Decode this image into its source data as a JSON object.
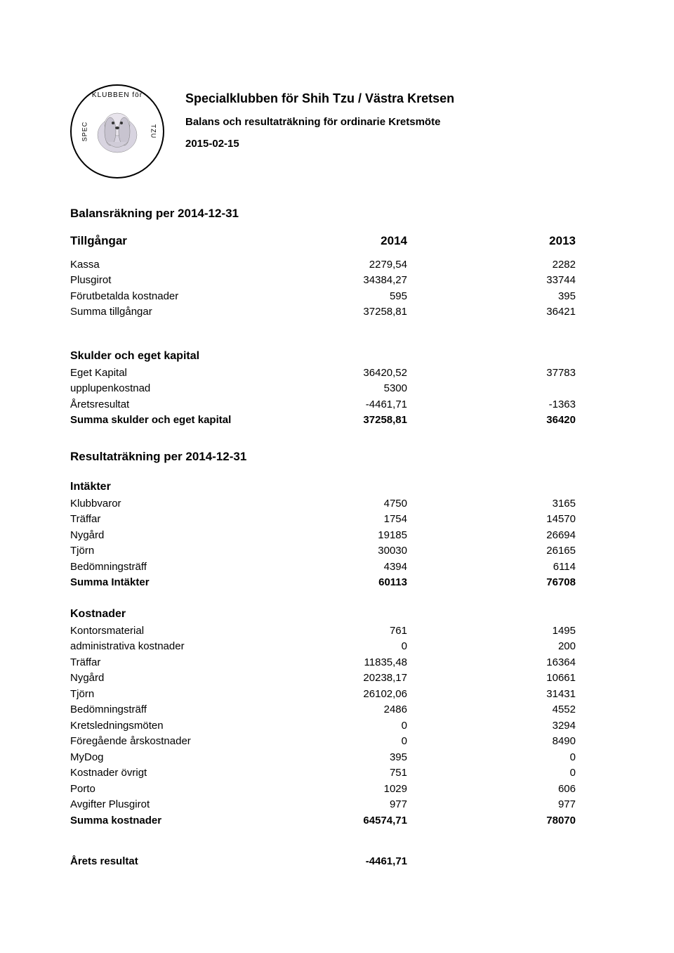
{
  "header": {
    "title": "Specialklubben för Shih Tzu / Västra Kretsen",
    "subtitle": "Balans och resultaträkning för ordinarie Kretsmöte",
    "date": "2015-02-15",
    "logo_arc": "KLUBBEN för",
    "logo_left": "SPEC",
    "logo_right": "TZU"
  },
  "balance_heading": "Balansräkning per 2014-12-31",
  "col_headers": {
    "label": "Tillgångar",
    "y2014": "2014",
    "y2013": "2013"
  },
  "tillgangar": [
    {
      "label": "Kassa",
      "y2014": "2279,54",
      "y2013": "2282"
    },
    {
      "label": "Plusgirot",
      "y2014": "34384,27",
      "y2013": "33744"
    },
    {
      "label": "Förutbetalda kostnader",
      "y2014": "595",
      "y2013": "395"
    },
    {
      "label": "Summa tillgångar",
      "y2014": "37258,81",
      "y2013": "36421",
      "bold": false
    }
  ],
  "skulder_heading": "Skulder och eget kapital",
  "skulder": [
    {
      "label": "Eget Kapital",
      "y2014": "36420,52",
      "y2013": "37783"
    },
    {
      "label": "upplupenkostnad",
      "y2014": "5300",
      "y2013": ""
    },
    {
      "label": "Åretsresultat",
      "y2014": "-4461,71",
      "y2013": "-1363"
    },
    {
      "label": "Summa skulder och eget kapital",
      "y2014": "37258,81",
      "y2013": "36420",
      "bold": true
    }
  ],
  "result_heading": "Resultaträkning per 2014-12-31",
  "intakter_heading": "Intäkter",
  "intakter": [
    {
      "label": "Klubbvaror",
      "y2014": "4750",
      "y2013": "3165"
    },
    {
      "label": "Träffar",
      "y2014": "1754",
      "y2013": "14570"
    },
    {
      "label": "Nygård",
      "y2014": "19185",
      "y2013": "26694"
    },
    {
      "label": "Tjörn",
      "y2014": "30030",
      "y2013": "26165"
    },
    {
      "label": "Bedömningsträff",
      "y2014": "4394",
      "y2013": "6114"
    },
    {
      "label": "Summa Intäkter",
      "y2014": "60113",
      "y2013": "76708",
      "bold": true
    }
  ],
  "kostnader_heading": "Kostnader",
  "kostnader": [
    {
      "label": "Kontorsmaterial",
      "y2014": "761",
      "y2013": "1495"
    },
    {
      "label": "administrativa kostnader",
      "y2014": "0",
      "y2013": "200"
    },
    {
      "label": "Träffar",
      "y2014": "11835,48",
      "y2013": "16364"
    },
    {
      "label": "Nygård",
      "y2014": "20238,17",
      "y2013": "10661"
    },
    {
      "label": "Tjörn",
      "y2014": "26102,06",
      "y2013": "31431"
    },
    {
      "label": "Bedömningsträff",
      "y2014": "2486",
      "y2013": "4552"
    },
    {
      "label": "Kretsledningsmöten",
      "y2014": "0",
      "y2013": "3294"
    },
    {
      "label": "Föregående årskostnader",
      "y2014": "0",
      "y2013": "8490"
    },
    {
      "label": "MyDog",
      "y2014": "395",
      "y2013": "0"
    },
    {
      "label": "Kostnader övrigt",
      "y2014": "751",
      "y2013": "0"
    },
    {
      "label": "Porto",
      "y2014": "1029",
      "y2013": "606"
    },
    {
      "label": "Avgifter Plusgirot",
      "y2014": "977",
      "y2013": "977"
    },
    {
      "label": "Summa kostnader",
      "y2014": "64574,71",
      "y2013": "78070",
      "bold": true
    }
  ],
  "arets_resultat": {
    "label": "Årets resultat",
    "y2014": "-4461,71",
    "y2013": ""
  }
}
